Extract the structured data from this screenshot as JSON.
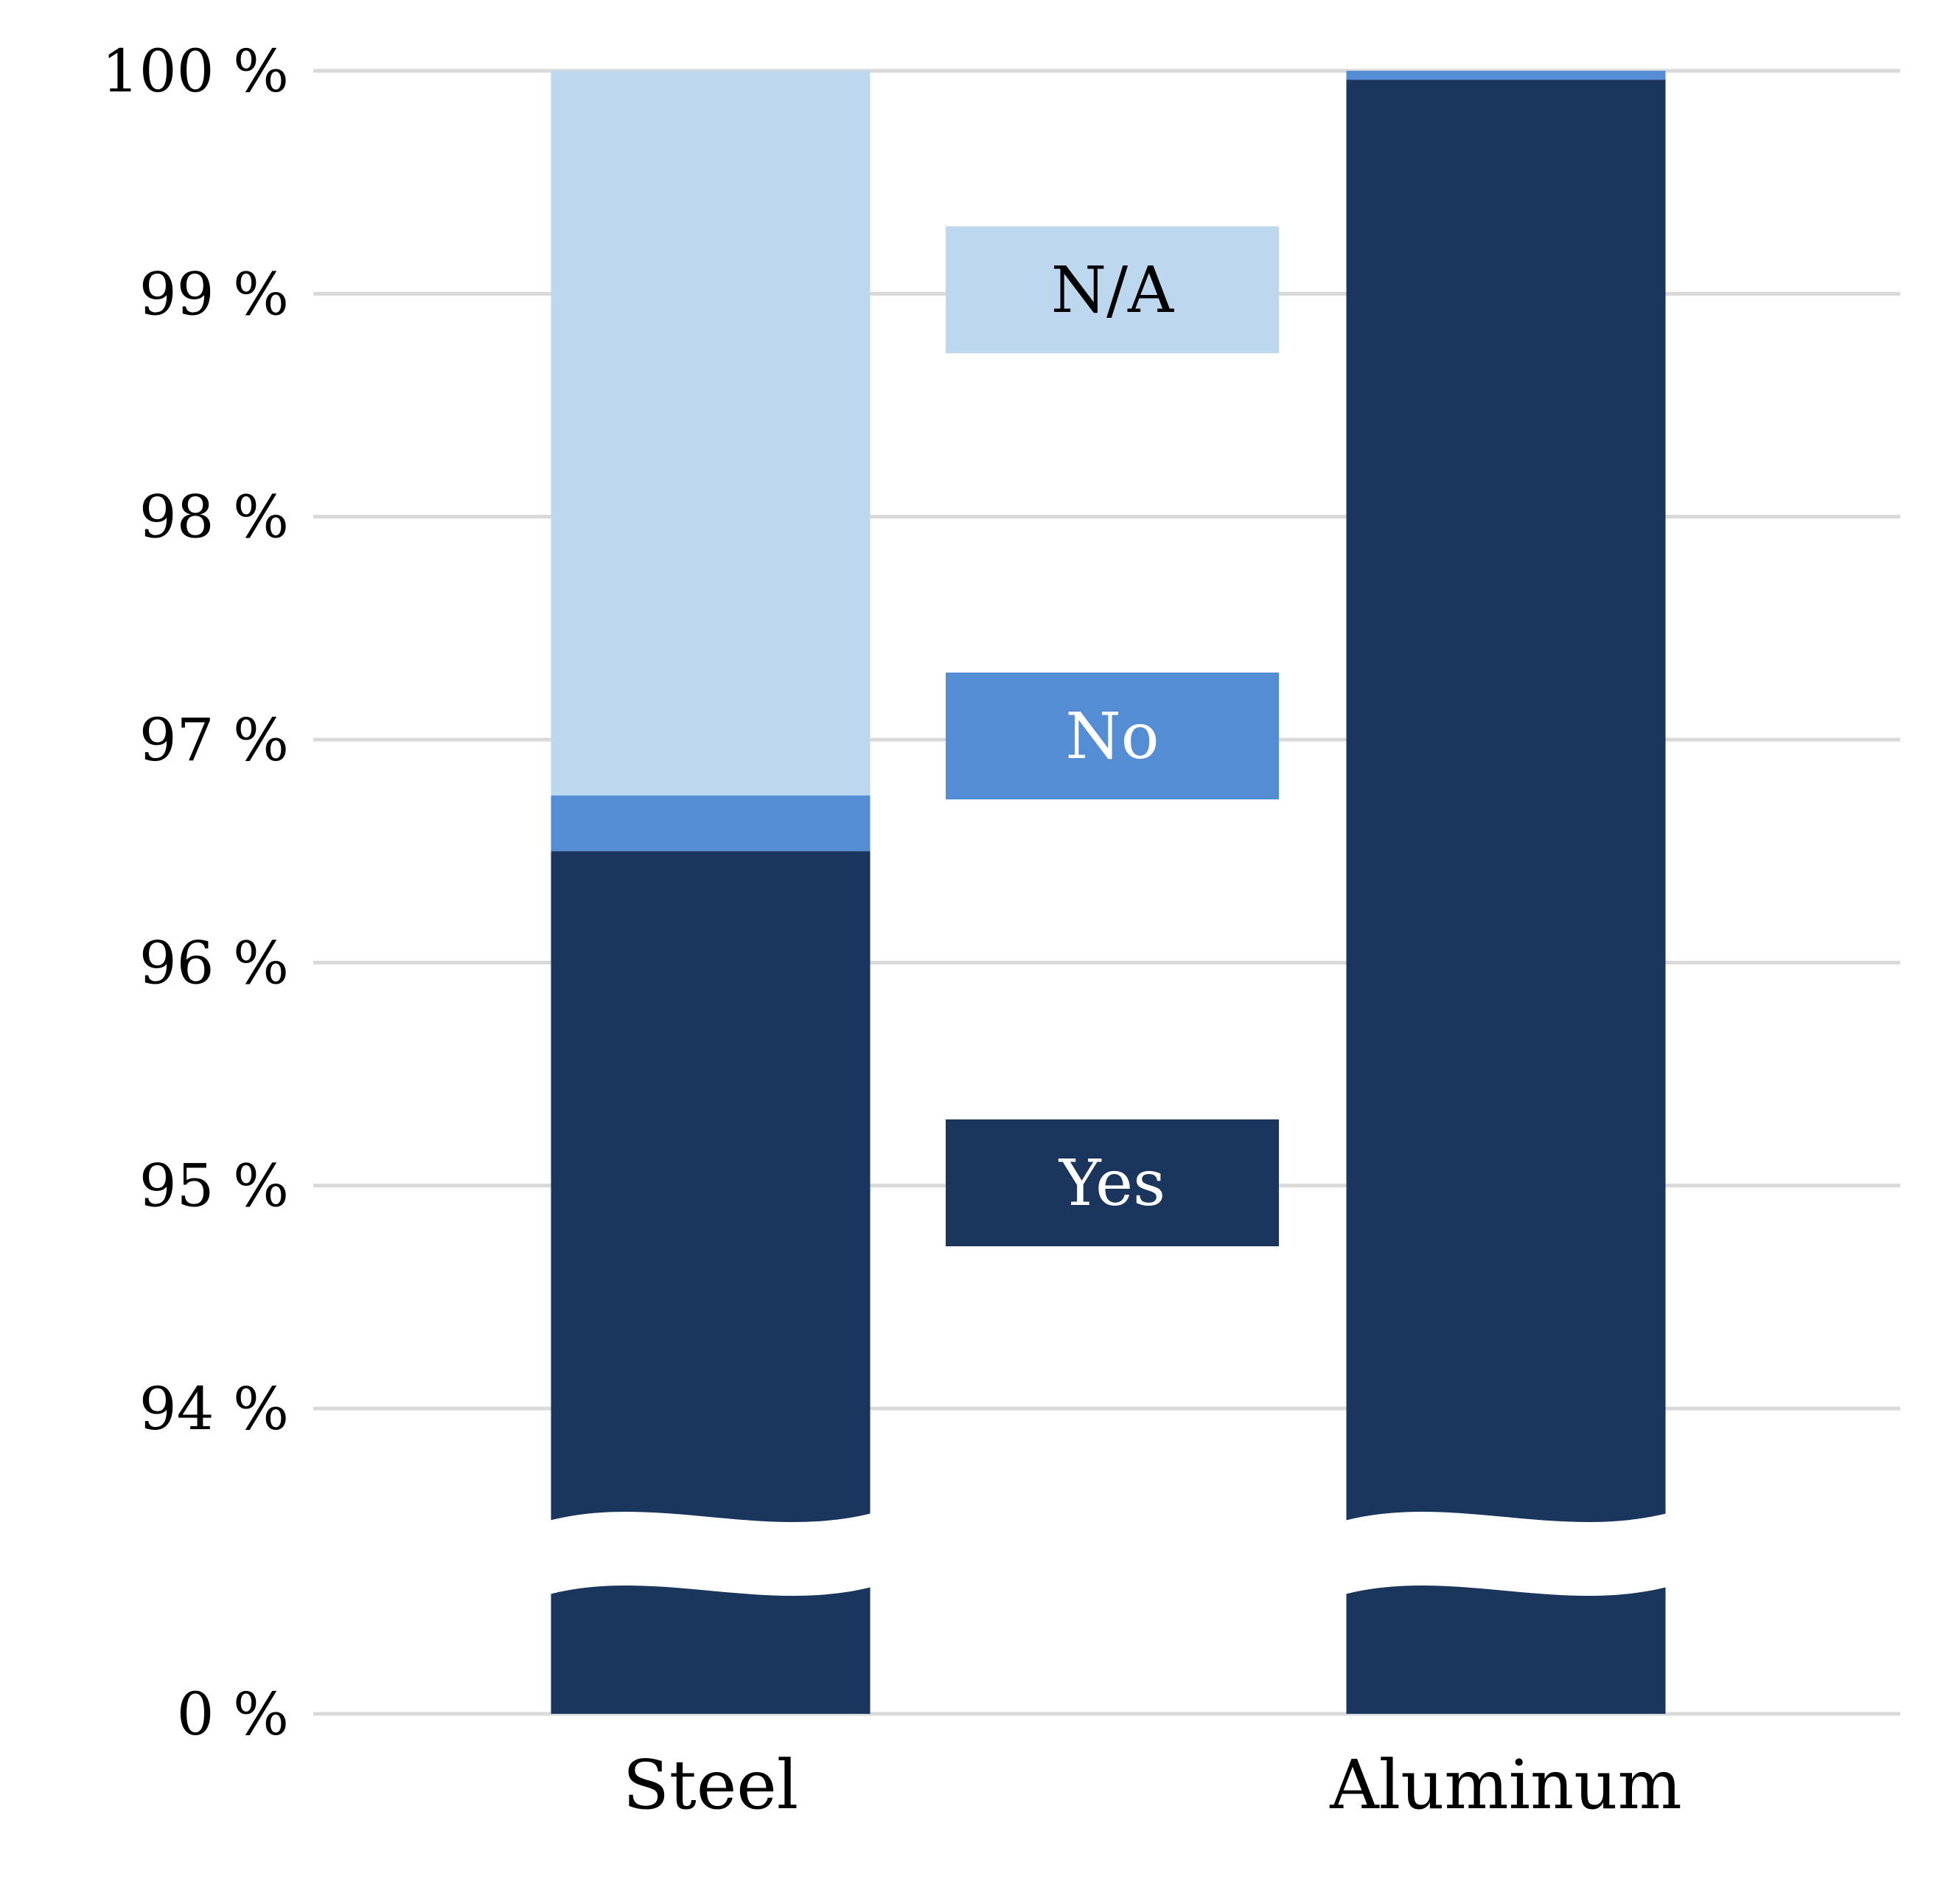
{
  "chart_data": {
    "type": "bar",
    "stacked": true,
    "broken_y_axis": true,
    "title": "",
    "xlabel": "",
    "ylabel": "",
    "categories": [
      "Steel",
      "Aluminum"
    ],
    "series": [
      {
        "name": "Yes",
        "color": "#1a365d",
        "values": [
          96.5,
          99.96
        ]
      },
      {
        "name": "No",
        "color": "#548dd4",
        "values": [
          0.25,
          0.04
        ]
      },
      {
        "name": "N/A",
        "color": "#bdd7ee",
        "values": [
          3.25,
          0
        ]
      }
    ],
    "y_ticks": [
      {
        "value": 0,
        "label": "0 %"
      },
      {
        "value": 94,
        "label": "94 %"
      },
      {
        "value": 95,
        "label": "95 %"
      },
      {
        "value": 96,
        "label": "96 %"
      },
      {
        "value": 97,
        "label": "97 %"
      },
      {
        "value": 98,
        "label": "98 %"
      },
      {
        "value": 99,
        "label": "99 %"
      },
      {
        "value": 100,
        "label": "100 %"
      }
    ],
    "ylim_upper_segment": [
      94,
      100
    ],
    "grid": true,
    "legend": {
      "placement": "between-bars",
      "entries": [
        {
          "label": "N/A",
          "color": "#bdd7ee",
          "text_color": "#000000"
        },
        {
          "label": "No",
          "color": "#548dd4",
          "text_color": "#ffffff"
        },
        {
          "label": "Yes",
          "color": "#1a365d",
          "text_color": "#ffffff"
        }
      ]
    }
  }
}
